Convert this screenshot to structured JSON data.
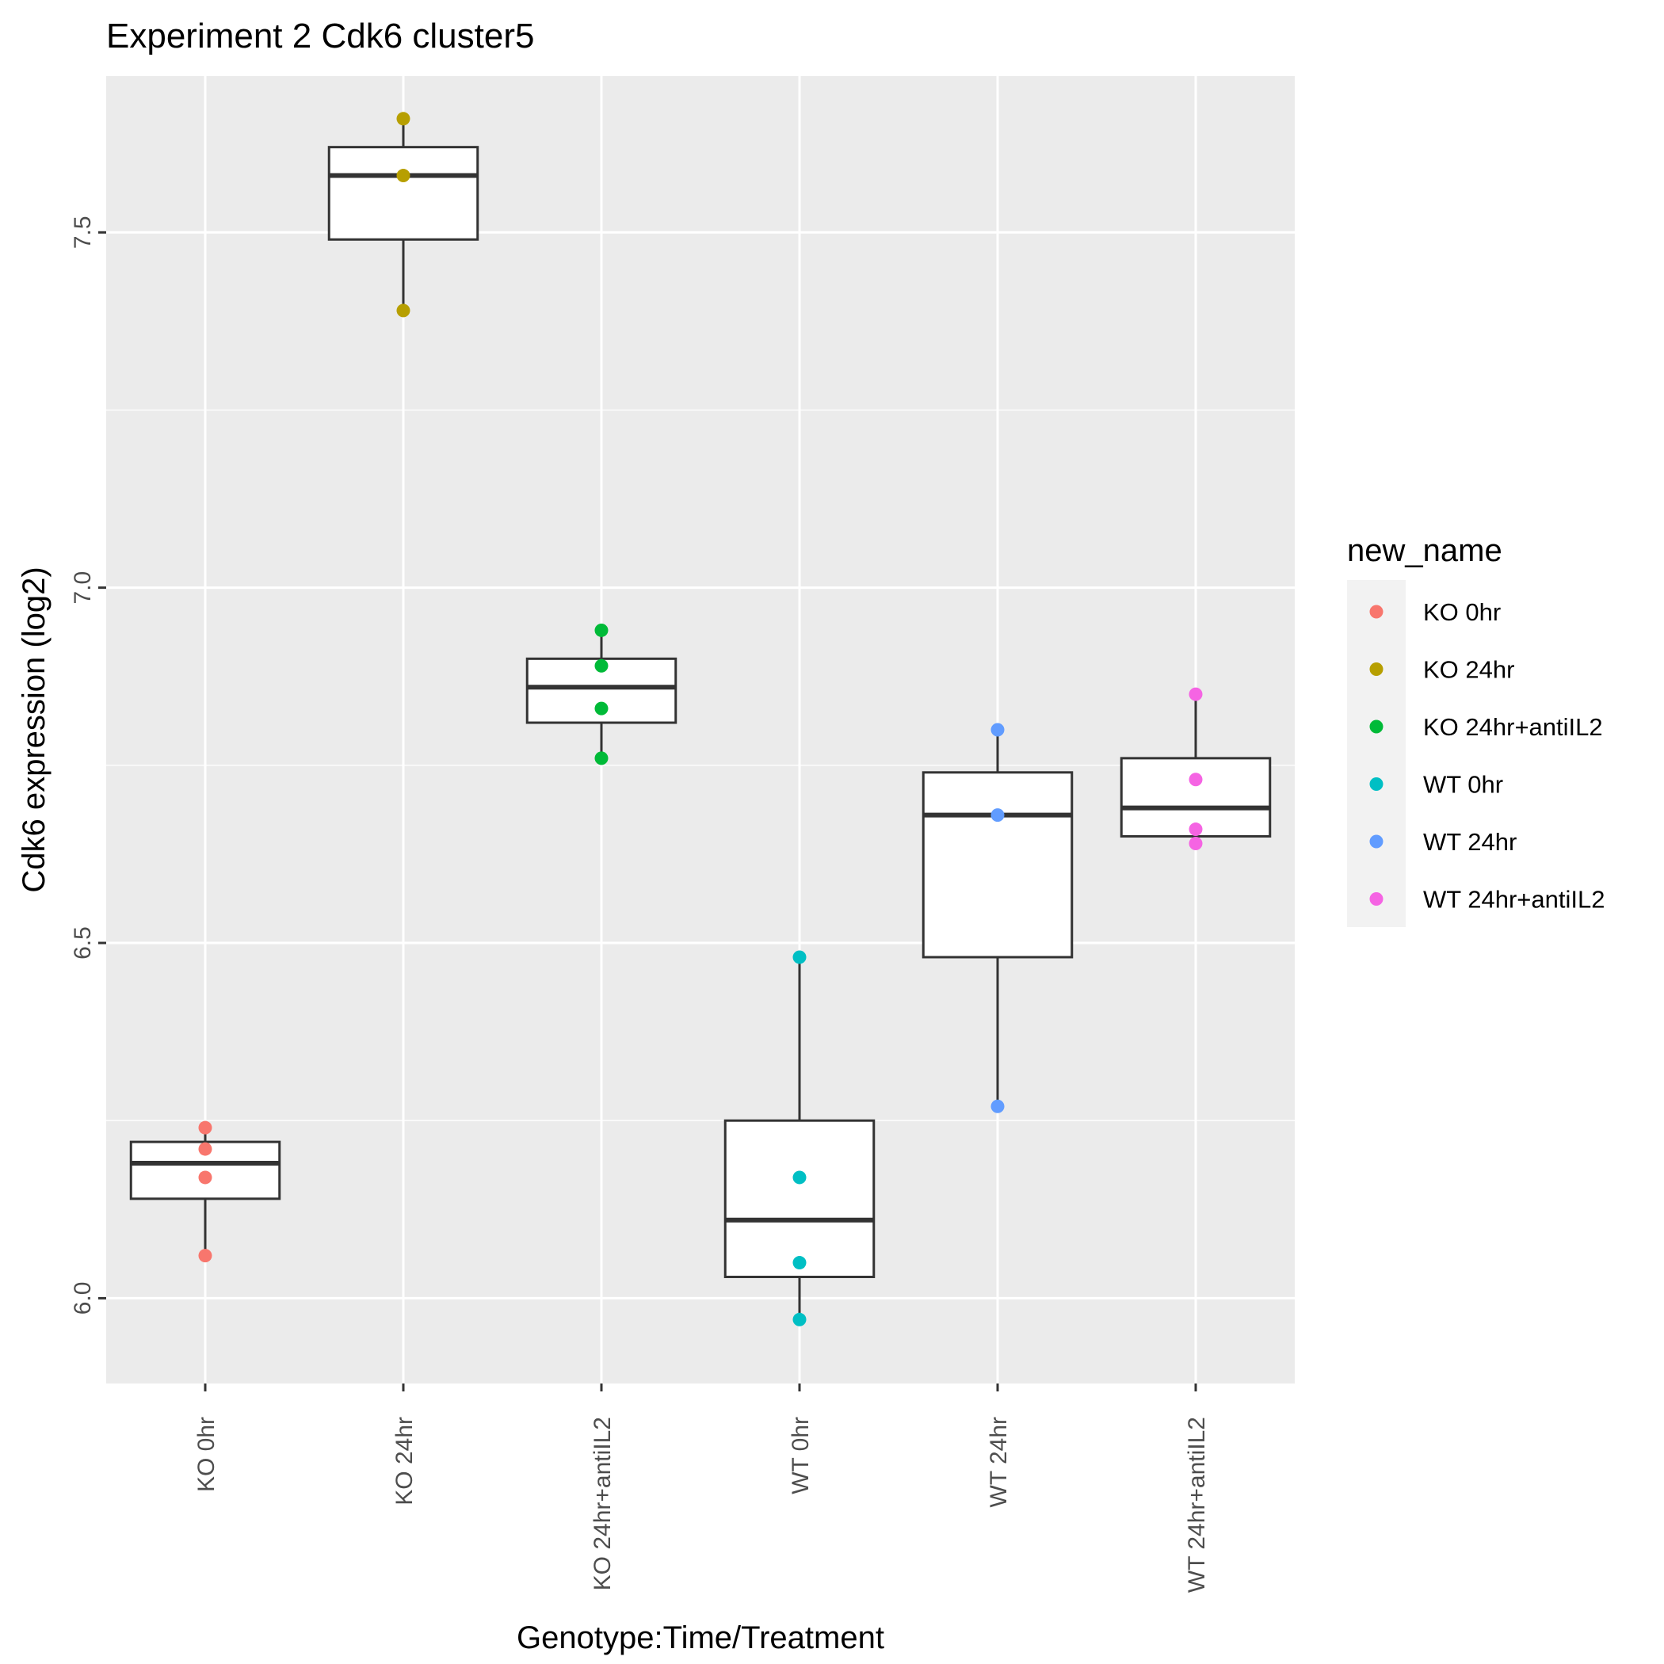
{
  "chart_data": {
    "type": "box",
    "title": "Experiment 2 Cdk6 cluster5",
    "xlabel": "Genotype:Time/Treatment",
    "ylabel": "Cdk6 expression (log2)",
    "ylim": [
      5.88,
      7.72
    ],
    "yticks": [
      6.0,
      6.5,
      7.0,
      7.5
    ],
    "ytick_labels": [
      "6.0",
      "6.5",
      "7.0",
      "7.5"
    ],
    "grid": true,
    "legend": {
      "title": "new_name",
      "position": "right",
      "entries": [
        "KO 0hr",
        "KO 24hr",
        "KO 24hr+antiIL2",
        "WT 0hr",
        "WT 24hr",
        "WT 24hr+antiIL2"
      ]
    },
    "categories": [
      "KO 0hr",
      "KO 24hr",
      "KO 24hr+antiIL2",
      "WT 0hr",
      "WT 24hr",
      "WT 24hr+antiIL2"
    ],
    "series": [
      {
        "category": "KO 0hr",
        "color": "#F8766D",
        "box": {
          "lower_whisker": 6.06,
          "q1": 6.14,
          "median": 6.19,
          "q3": 6.22,
          "upper_whisker": 6.24
        },
        "points": [
          6.24,
          6.21,
          6.17,
          6.06
        ]
      },
      {
        "category": "KO 24hr",
        "color": "#B79F00",
        "box": {
          "lower_whisker": 7.39,
          "q1": 7.49,
          "median": 7.58,
          "q3": 7.62,
          "upper_whisker": 7.66
        },
        "points": [
          7.66,
          7.58,
          7.39
        ]
      },
      {
        "category": "KO 24hr+antiIL2",
        "color": "#00BA38",
        "box": {
          "lower_whisker": 6.76,
          "q1": 6.81,
          "median": 6.86,
          "q3": 6.9,
          "upper_whisker": 6.94
        },
        "points": [
          6.94,
          6.89,
          6.83,
          6.76
        ]
      },
      {
        "category": "WT 0hr",
        "color": "#00BFC4",
        "box": {
          "lower_whisker": 5.97,
          "q1": 6.03,
          "median": 6.11,
          "q3": 6.25,
          "upper_whisker": 6.48
        },
        "points": [
          6.48,
          6.17,
          6.05,
          5.97
        ]
      },
      {
        "category": "WT 24hr",
        "color": "#619CFF",
        "box": {
          "lower_whisker": 6.27,
          "q1": 6.48,
          "median": 6.68,
          "q3": 6.74,
          "upper_whisker": 6.8
        },
        "points": [
          6.8,
          6.68,
          6.27
        ]
      },
      {
        "category": "WT 24hr+antiIL2",
        "color": "#F564E3",
        "box": {
          "lower_whisker": 6.64,
          "q1": 6.65,
          "median": 6.69,
          "q3": 6.76,
          "upper_whisker": 6.85
        },
        "points": [
          6.85,
          6.73,
          6.66,
          6.64
        ]
      }
    ]
  }
}
